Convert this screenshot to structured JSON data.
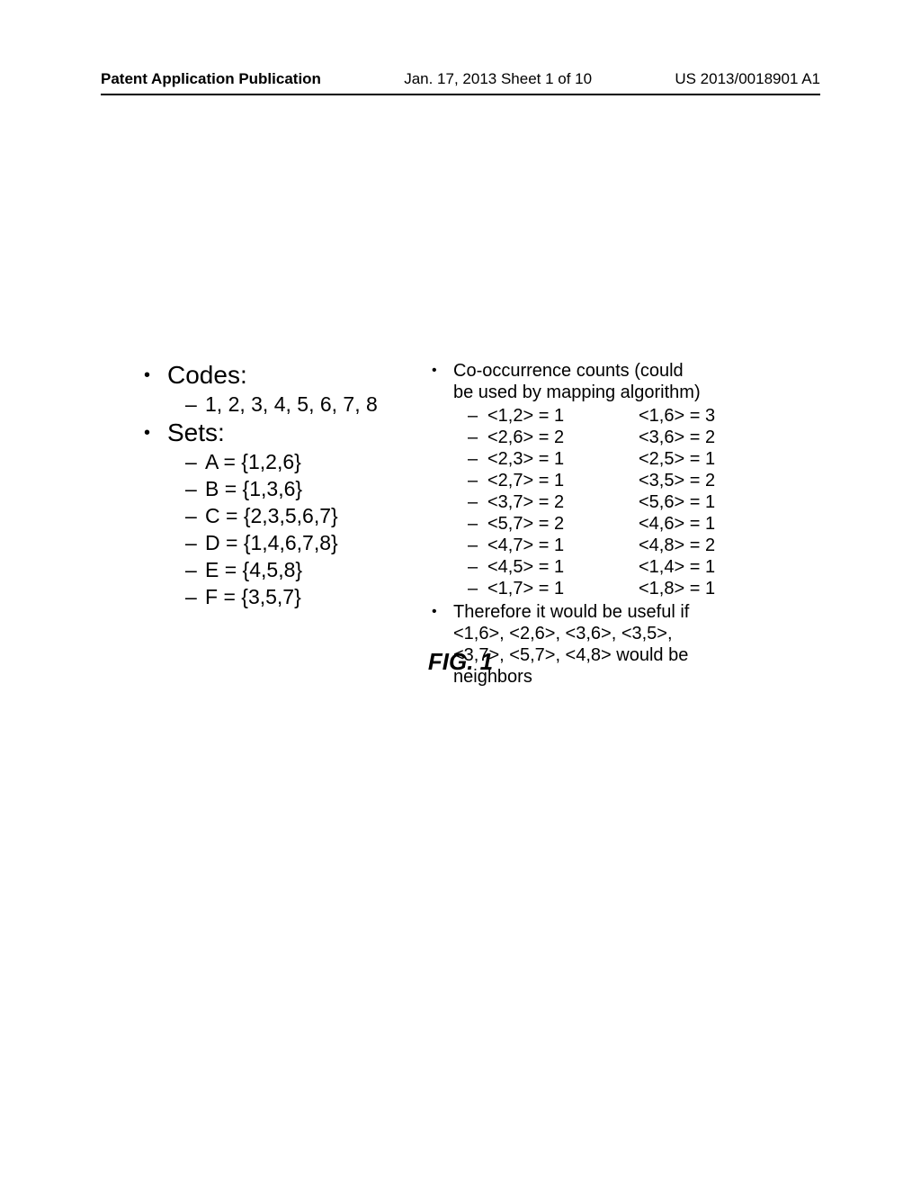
{
  "header": {
    "left": "Patent Application Publication",
    "mid": "Jan. 17, 2013  Sheet 1 of 10",
    "right": "US 2013/0018901 A1"
  },
  "left_col": {
    "codes_label": "Codes:",
    "codes_value": "1, 2, 3, 4, 5, 6, 7, 8",
    "sets_label": "Sets:",
    "sets": [
      "A = {1,2,6}",
      "B = {1,3,6}",
      "C = {2,3,5,6,7}",
      "D = {1,4,6,7,8}",
      "E = {4,5,8}",
      "F = {3,5,7}"
    ]
  },
  "right_col": {
    "cooc_title_l1": "Co-occurrence counts (could",
    "cooc_title_l2": "be used by mapping algorithm)",
    "cooc_rows": [
      {
        "l": "<1,2> = 1",
        "r": "<1,6> = 3"
      },
      {
        "l": "<2,6> = 2",
        "r": "<3,6> = 2"
      },
      {
        "l": "<2,3> = 1",
        "r": "<2,5> = 1"
      },
      {
        "l": "<2,7> = 1",
        "r": "<3,5> = 2"
      },
      {
        "l": "<3,7> = 2",
        "r": "<5,6> = 1"
      },
      {
        "l": "<5,7> = 2",
        "r": "<4,6> = 1"
      },
      {
        "l": "<4,7> = 1",
        "r": "<4,8> = 2"
      },
      {
        "l": "<4,5> = 1",
        "r": "<1,4> = 1"
      },
      {
        "l": "<1,7> = 1",
        "r": "<1,8> = 1"
      }
    ],
    "therefore_l1": "Therefore it would be useful if",
    "therefore_l2": "<1,6>, <2,6>, <3,6>, <3,5>,",
    "therefore_l3": "<3,7>, <5,7>, <4,8> would be",
    "therefore_l4": "neighbors"
  },
  "fig_caption": "FIG. 1"
}
